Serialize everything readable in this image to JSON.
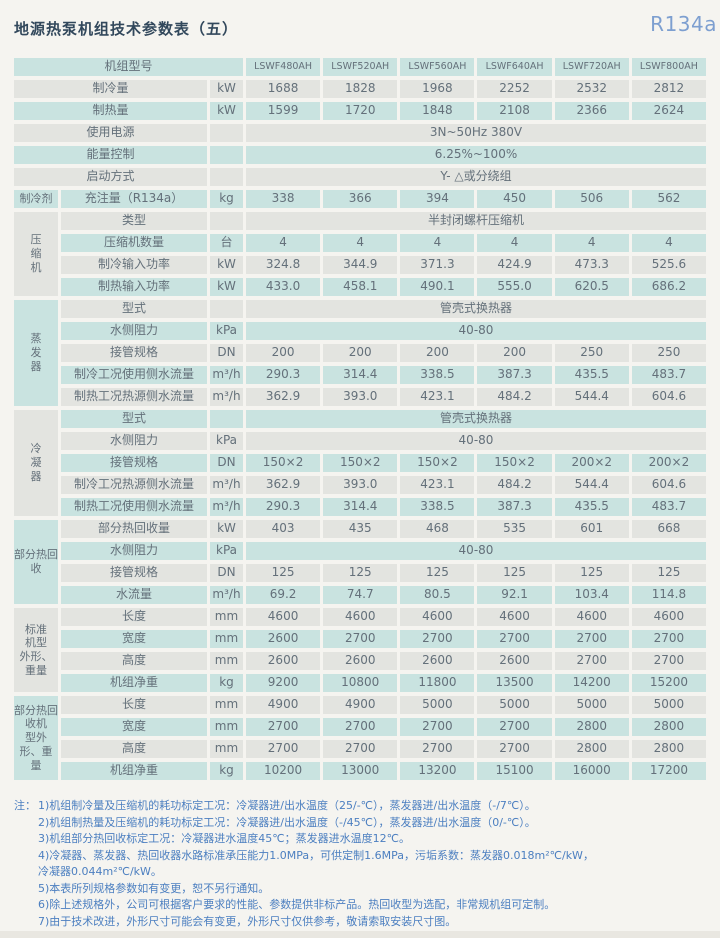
{
  "page": {
    "title": "地源热泵机组技术参数表（五）",
    "refrigerant": "R134a"
  },
  "colors": {
    "row_teal": "#c9e3e0",
    "row_gray": "#e3e4e0",
    "page_bg": "#f5f4f0",
    "title_text": "#32485c",
    "cell_text": "#64707a",
    "note_text": "#4c7fc0",
    "refrigerant_text": "#7d9fd0"
  },
  "table": {
    "rows": [
      {
        "header": true,
        "label": "机组型号",
        "label_span": 3,
        "shade": "teal",
        "values": [
          "LSWF480AH",
          "LSWF520AH",
          "LSWF560AH",
          "LSWF640AH",
          "LSWF720AH",
          "LSWF800AH"
        ]
      },
      {
        "label": "制冷量",
        "label_span": 2,
        "unit": "kW",
        "shade": "gray",
        "values": [
          "1688",
          "1828",
          "1968",
          "2252",
          "2532",
          "2812"
        ]
      },
      {
        "label": "制热量",
        "label_span": 2,
        "unit": "kW",
        "shade": "teal",
        "values": [
          "1599",
          "1720",
          "1848",
          "2108",
          "2366",
          "2624"
        ]
      },
      {
        "label": "使用电源",
        "label_span": 2,
        "unit": "",
        "shade": "gray",
        "value_span": "3N~50Hz  380V"
      },
      {
        "label": "能量控制",
        "label_span": 2,
        "unit": "",
        "shade": "teal",
        "value_span": "6.25%~100%"
      },
      {
        "label": "启动方式",
        "label_span": 2,
        "unit": "",
        "shade": "gray",
        "value_span": "Y- △或分绕组"
      },
      {
        "group": {
          "text": "制冷剂",
          "span": 1,
          "shade": "teal"
        },
        "label": "充注量（R134a）",
        "unit": "kg",
        "shade": "teal",
        "values": [
          "338",
          "366",
          "394",
          "450",
          "506",
          "562"
        ]
      },
      {
        "group": {
          "text": "压\n缩\n机",
          "span": 4,
          "shade": "gray"
        },
        "label": "类型",
        "unit": "",
        "shade": "gray",
        "value_span": "半封闭螺杆压缩机"
      },
      {
        "label": "压缩机数量",
        "unit": "台",
        "shade": "teal",
        "values": [
          "4",
          "4",
          "4",
          "4",
          "4",
          "4"
        ]
      },
      {
        "label": "制冷输入功率",
        "unit": "kW",
        "shade": "gray",
        "values": [
          "324.8",
          "344.9",
          "371.3",
          "424.9",
          "473.3",
          "525.6"
        ]
      },
      {
        "label": "制热输入功率",
        "unit": "kW",
        "shade": "teal",
        "values": [
          "433.0",
          "458.1",
          "490.1",
          "555.0",
          "620.5",
          "686.2"
        ]
      },
      {
        "group": {
          "text": "蒸\n发\n器",
          "span": 5,
          "shade": "teal"
        },
        "label": "型式",
        "unit": "",
        "shade": "gray",
        "value_span": "管壳式换热器"
      },
      {
        "label": "水侧阻力",
        "unit": "kPa",
        "shade": "teal",
        "value_span": "40-80"
      },
      {
        "label": "接管规格",
        "unit": "DN",
        "shade": "gray",
        "values": [
          "200",
          "200",
          "200",
          "200",
          "250",
          "250"
        ]
      },
      {
        "label": "制冷工况使用侧水流量",
        "unit": "m³/h",
        "shade": "teal",
        "values": [
          "290.3",
          "314.4",
          "338.5",
          "387.3",
          "435.5",
          "483.7"
        ]
      },
      {
        "label": "制热工况热源侧水流量",
        "unit": "m³/h",
        "shade": "gray",
        "values": [
          "362.9",
          "393.0",
          "423.1",
          "484.2",
          "544.4",
          "604.6"
        ]
      },
      {
        "group": {
          "text": "冷\n凝\n器",
          "span": 5,
          "shade": "gray"
        },
        "label": "型式",
        "unit": "",
        "shade": "teal",
        "value_span": "管壳式换热器"
      },
      {
        "label": "水侧阻力",
        "unit": "kPa",
        "shade": "gray",
        "value_span": "40-80"
      },
      {
        "label": "接管规格",
        "unit": "DN",
        "shade": "teal",
        "values": [
          "150×2",
          "150×2",
          "150×2",
          "150×2",
          "200×2",
          "200×2"
        ]
      },
      {
        "label": "制冷工况热源侧水流量",
        "unit": "m³/h",
        "shade": "gray",
        "values": [
          "362.9",
          "393.0",
          "423.1",
          "484.2",
          "544.4",
          "604.6"
        ]
      },
      {
        "label": "制热工况使用侧水流量",
        "unit": "m³/h",
        "shade": "teal",
        "values": [
          "290.3",
          "314.4",
          "338.5",
          "387.3",
          "435.5",
          "483.7"
        ]
      },
      {
        "group": {
          "text": "部分热回\n收",
          "span": 4,
          "shade": "teal"
        },
        "label": "部分热回收量",
        "unit": "kW",
        "shade": "gray",
        "values": [
          "403",
          "435",
          "468",
          "535",
          "601",
          "668"
        ]
      },
      {
        "label": "水侧阻力",
        "unit": "kPa",
        "shade": "teal",
        "value_span": "40-80"
      },
      {
        "label": "接管规格",
        "unit": "DN",
        "shade": "gray",
        "values": [
          "125",
          "125",
          "125",
          "125",
          "125",
          "125"
        ]
      },
      {
        "label": "水流量",
        "unit": "m³/h",
        "shade": "teal",
        "values": [
          "69.2",
          "74.7",
          "80.5",
          "92.1",
          "103.4",
          "114.8"
        ]
      },
      {
        "group": {
          "text": "标准\n机型\n外形、\n重量",
          "span": 4,
          "shade": "gray"
        },
        "label": "长度",
        "unit": "mm",
        "shade": "gray",
        "values": [
          "4600",
          "4600",
          "4600",
          "4600",
          "4600",
          "4600"
        ]
      },
      {
        "label": "宽度",
        "unit": "mm",
        "shade": "teal",
        "values": [
          "2600",
          "2700",
          "2700",
          "2700",
          "2700",
          "2700"
        ]
      },
      {
        "label": "高度",
        "unit": "mm",
        "shade": "gray",
        "values": [
          "2600",
          "2600",
          "2600",
          "2600",
          "2700",
          "2700"
        ]
      },
      {
        "label": "机组净重",
        "unit": "kg",
        "shade": "teal",
        "values": [
          "9200",
          "10800",
          "11800",
          "13500",
          "14200",
          "15200"
        ]
      },
      {
        "group": {
          "text": "部分热回\n收机\n型外\n形、重\n量",
          "span": 4,
          "shade": "teal"
        },
        "label": "长度",
        "unit": "mm",
        "shade": "gray",
        "values": [
          "4900",
          "4900",
          "5000",
          "5000",
          "5000",
          "5000"
        ]
      },
      {
        "label": "宽度",
        "unit": "mm",
        "shade": "teal",
        "values": [
          "2700",
          "2700",
          "2700",
          "2700",
          "2800",
          "2800"
        ]
      },
      {
        "label": "高度",
        "unit": "mm",
        "shade": "gray",
        "values": [
          "2700",
          "2700",
          "2700",
          "2700",
          "2800",
          "2800"
        ]
      },
      {
        "label": "机组净重",
        "unit": "kg",
        "shade": "teal",
        "values": [
          "10200",
          "13000",
          "13200",
          "15100",
          "16000",
          "17200"
        ]
      }
    ]
  },
  "notes": {
    "prefix": "注：",
    "items": [
      "1)机组制冷量及压缩机的耗功标定工况：冷凝器进/出水温度（25/-℃），蒸发器进/出水温度（-/7℃）。",
      "2)机组制热量及压缩机的耗功标定工况：冷凝器进/出水温度（-/45℃），蒸发器进/出水温度（0/-℃）。",
      "3)机组部分热回收标定工况：冷凝器进水温度45℃；蒸发器进水温度12℃。",
      "4)冷凝器、蒸发器、热回收器水路标准承压能力1.0MPa，可供定制1.6MPa，污垢系数：蒸发器0.018m²℃/kW，\n冷凝器0.044m²℃/kW。",
      "5)本表所列规格参数如有变更，恕不另行通知。",
      "6)除上述规格外，公司可根据客户要求的性能、参数提供非标产品。热回收型为选配，非常规机组可定制。",
      "7)由于技术改进，外形尺寸可能会有变更，外形尺寸仅供参考，敬请索取安装尺寸图。"
    ]
  }
}
